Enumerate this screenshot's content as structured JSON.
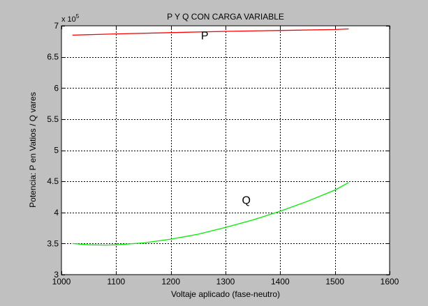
{
  "chart_data": {
    "type": "line",
    "title": "P Y Q CON CARGA VARIABLE",
    "xlabel": "Voltaje aplicado (fase-neutro)",
    "ylabel": "Potencia: P en Vatios / Q vares",
    "exponent_label": {
      "base": "x 10",
      "power": "5"
    },
    "xlim": [
      1000,
      1600
    ],
    "ylim": [
      3,
      7
    ],
    "xticks": [
      1000,
      1100,
      1200,
      1300,
      1400,
      1500,
      1600
    ],
    "xtick_labels": [
      "1000",
      "1100",
      "1200",
      "1300",
      "1400",
      "1500",
      "1600"
    ],
    "yticks": [
      3,
      3.5,
      4,
      4.5,
      5,
      5.5,
      6,
      6.5,
      7
    ],
    "ytick_labels": [
      "3",
      "3.5",
      "4",
      "4.5",
      "5",
      "5.5",
      "6",
      "6.5",
      "7"
    ],
    "grid": true,
    "series": [
      {
        "name": "P",
        "color": "#ff0000",
        "x": [
          1020,
          1100,
          1200,
          1300,
          1400,
          1500,
          1525
        ],
        "y": [
          6.85,
          6.87,
          6.89,
          6.91,
          6.925,
          6.94,
          6.95
        ]
      },
      {
        "name": "Q",
        "color": "#00ee00",
        "x": [
          1020,
          1050,
          1080,
          1100,
          1150,
          1200,
          1250,
          1300,
          1350,
          1400,
          1450,
          1500,
          1525
        ],
        "y": [
          3.5,
          3.48,
          3.475,
          3.48,
          3.51,
          3.57,
          3.65,
          3.76,
          3.88,
          4.02,
          4.18,
          4.36,
          4.48
        ]
      }
    ],
    "annotations": [
      {
        "text": "P",
        "x": 1262,
        "y": 6.78
      },
      {
        "text": "Q",
        "x": 1338,
        "y": 4.14
      }
    ]
  }
}
